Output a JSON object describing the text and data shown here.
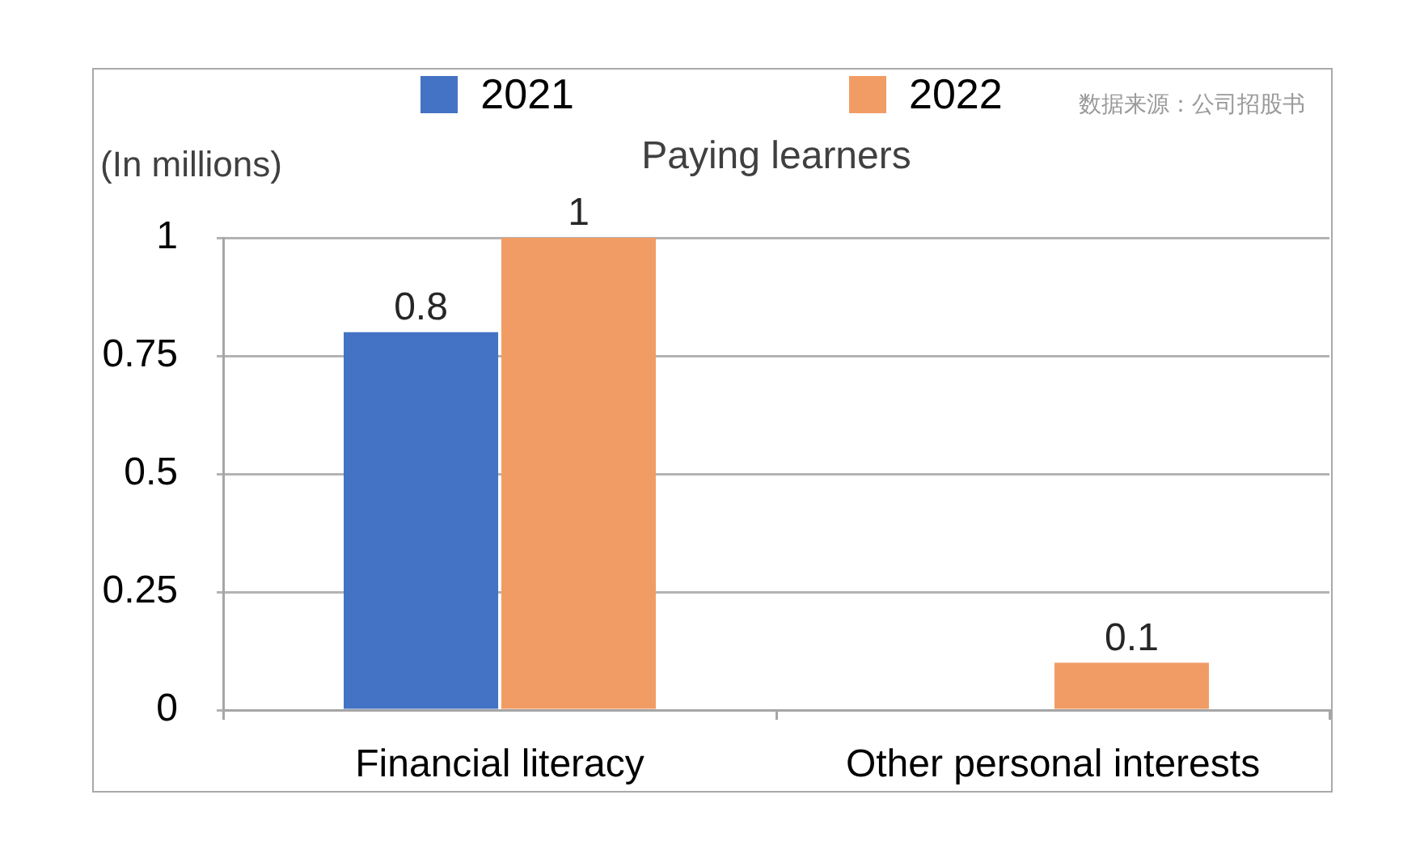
{
  "chart_data": {
    "type": "bar",
    "title": "Paying learners",
    "ylabel": "(In millions)",
    "categories": [
      "Financial literacy",
      "Other personal interests"
    ],
    "series": [
      {
        "name": "2021",
        "color": "#4472c4",
        "values": [
          0.8,
          null
        ]
      },
      {
        "name": "2022",
        "color": "#f19c64",
        "values": [
          1,
          0.1
        ]
      }
    ],
    "ylim": [
      0,
      1
    ],
    "yticks": [
      0,
      0.25,
      0.5,
      0.75,
      1
    ],
    "grid": "y",
    "legend": "top",
    "data_labels": true,
    "annotations": [
      "数据来源：公司招股书"
    ]
  }
}
